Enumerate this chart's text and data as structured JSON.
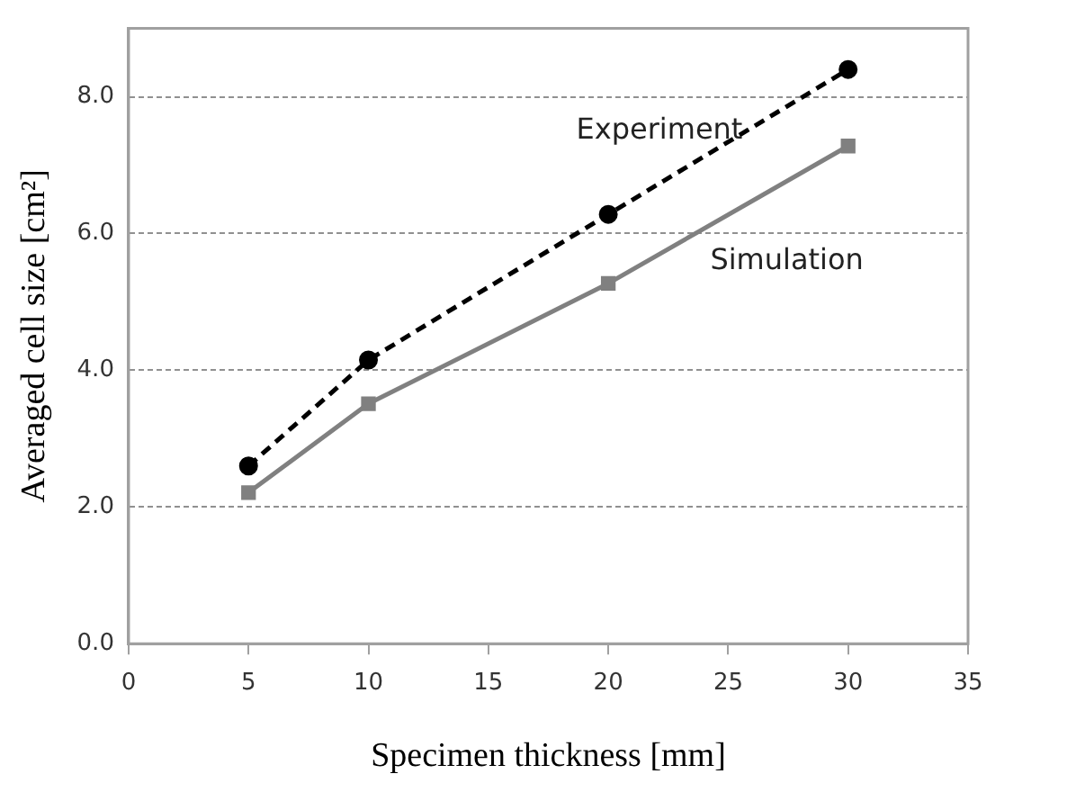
{
  "chart_data": {
    "type": "line",
    "xlabel": "Specimen thickness [mm]",
    "ylabel": "Averaged cell size [cm²]",
    "x": [
      5,
      10,
      20,
      30
    ],
    "series": [
      {
        "name": "Experiment",
        "color": "#000000",
        "values": [
          2.6,
          4.15,
          6.28,
          8.4
        ],
        "marker": "circle",
        "line_style": "dashed"
      },
      {
        "name": "Simulation",
        "color": "#808080",
        "values": [
          2.21,
          3.51,
          5.27,
          7.28
        ],
        "marker": "square",
        "line_style": "solid"
      }
    ],
    "xlim": [
      0,
      35
    ],
    "xticks": [
      0,
      5,
      10,
      15,
      20,
      25,
      30,
      35
    ],
    "ylim": [
      0,
      9
    ],
    "yticks": [
      {
        "value": 0,
        "label": "0.0"
      },
      {
        "value": 2,
        "label": "2.0"
      },
      {
        "value": 4,
        "label": "4.0"
      },
      {
        "value": 6,
        "label": "6.0"
      },
      {
        "value": 8,
        "label": "8.0"
      }
    ],
    "grid": "y",
    "legend": false
  }
}
